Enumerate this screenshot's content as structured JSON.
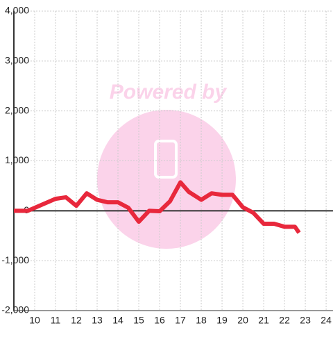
{
  "chart_data": {
    "type": "line",
    "watermark": "Powered by",
    "x": [
      9,
      9.67,
      11,
      11.5,
      12,
      12.5,
      13,
      13.5,
      14,
      14.5,
      15,
      15.5,
      16,
      16.5,
      17,
      17.4,
      18,
      18.5,
      19,
      19.5,
      20,
      20.5,
      21,
      21.5,
      22,
      22.5,
      22.7
    ],
    "series": [
      {
        "color": "#e8283c",
        "values": [
          0,
          0,
          240,
          270,
          100,
          350,
          220,
          170,
          170,
          60,
          -220,
          0,
          -10,
          190,
          570,
          380,
          220,
          350,
          320,
          320,
          70,
          -40,
          -260,
          -260,
          -320,
          -320,
          -440
        ]
      }
    ],
    "xlim": [
      9,
      24.33
    ],
    "xticks": [
      10,
      11,
      12,
      13,
      14,
      15,
      16,
      17,
      18,
      19,
      20,
      21,
      22,
      23,
      24
    ],
    "ylim": [
      -2000,
      4000
    ],
    "yticks": [
      {
        "value": -2000,
        "label": "-2,000"
      },
      {
        "value": -1000,
        "label": "-1,000"
      },
      0,
      {
        "value": 1000,
        "label": "1,000"
      },
      {
        "value": 2000,
        "label": "2,000"
      },
      {
        "value": 3000,
        "label": "3,000"
      },
      {
        "value": 4000,
        "label": "4,000"
      }
    ],
    "grid": true
  }
}
